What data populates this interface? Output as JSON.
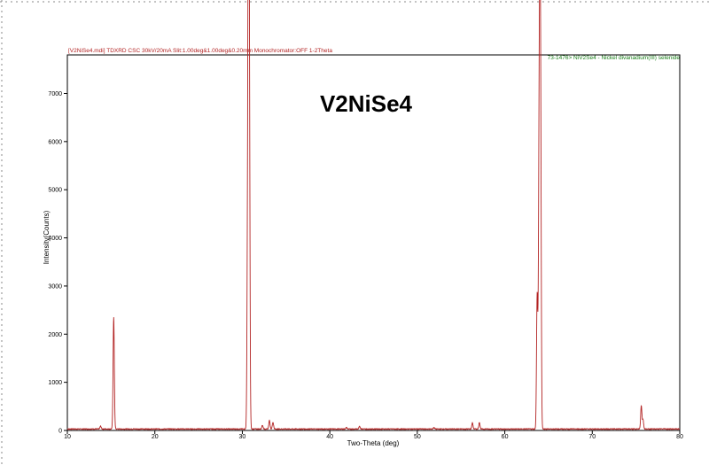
{
  "chart_data": {
    "type": "line",
    "header_text": "[V2NiSe4.mdi] TDXRD CSC 30kV/20mA Slit:1.00deg&1.00deg&0.20mm Monochromator:OFF 1-2Theta",
    "reference_text": "73-1476> NiV2Se4 - Nickel divanadium(III) selenide",
    "title": "V2NiSe4",
    "xlabel": "Two-Theta (deg)",
    "ylabel": "Intensity(Counts)",
    "xlim": [
      10,
      80
    ],
    "ylim": [
      0,
      7800
    ],
    "x_ticks": [
      10,
      20,
      30,
      40,
      50,
      60,
      70,
      80
    ],
    "y_ticks": [
      0,
      1000,
      2000,
      3000,
      4000,
      5000,
      6000,
      7000
    ],
    "grid": false,
    "colors": {
      "pattern": "#b22222",
      "header": "#b22222",
      "reference": "#1a7f1a",
      "axis": "#000000"
    },
    "baseline": 30,
    "peaks": [
      {
        "x": 13.8,
        "y": 90
      },
      {
        "x": 15.3,
        "y": 2350
      },
      {
        "x": 30.6,
        "y": 3600
      },
      {
        "x": 30.7,
        "y": 7550
      },
      {
        "x": 30.8,
        "y": 7000
      },
      {
        "x": 32.3,
        "y": 110
      },
      {
        "x": 33.1,
        "y": 210
      },
      {
        "x": 33.5,
        "y": 170
      },
      {
        "x": 41.9,
        "y": 60
      },
      {
        "x": 43.4,
        "y": 90
      },
      {
        "x": 51.9,
        "y": 60
      },
      {
        "x": 56.3,
        "y": 160
      },
      {
        "x": 57.1,
        "y": 170
      },
      {
        "x": 63.7,
        "y": 2800
      },
      {
        "x": 63.9,
        "y": 4200
      },
      {
        "x": 64.0,
        "y": 6300
      },
      {
        "x": 64.1,
        "y": 6100
      },
      {
        "x": 75.6,
        "y": 520
      },
      {
        "x": 75.8,
        "y": 230
      },
      {
        "x": 78.2,
        "y": 40
      }
    ]
  }
}
